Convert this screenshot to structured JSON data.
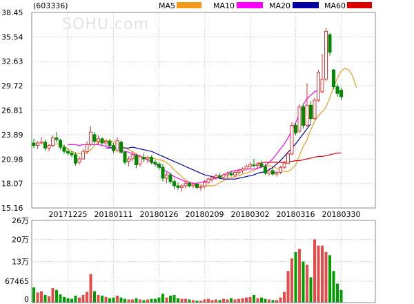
{
  "header": {
    "code": "(603336)",
    "watermark": "SOHU.com"
  },
  "legend": [
    {
      "name": "MA5",
      "color": "#f29a1b"
    },
    {
      "name": "MA10",
      "color": "#ff00ff"
    },
    {
      "name": "MA20",
      "color": "#0000a0"
    },
    {
      "name": "MA60",
      "color": "#dd0000"
    }
  ],
  "colors": {
    "up": "#e63232",
    "down": "#008a00",
    "volume_up": "#e84a4a",
    "volume_down": "#00a000"
  },
  "chart_data": [
    {
      "type": "candlestick",
      "ylim": [
        15.16,
        38.45
      ],
      "y_ticks": [
        "38.45",
        "35.54",
        "32.63",
        "29.72",
        "26.81",
        "23.89",
        "20.98",
        "18.07",
        "15.16"
      ],
      "x_tick_labels": [
        "20171225",
        "20180111",
        "20180126",
        "20180209",
        "20180302",
        "20180316",
        "20180330"
      ],
      "x_tick_index": [
        9,
        21,
        33,
        45,
        57,
        69,
        81
      ],
      "grid": true,
      "ohlc": [
        [
          22.9,
          23.4,
          22.3,
          22.6
        ],
        [
          22.6,
          23.1,
          22.2,
          22.9
        ],
        [
          22.9,
          23.6,
          22.7,
          23.0
        ],
        [
          23.0,
          23.3,
          22.0,
          22.3
        ],
        [
          22.3,
          22.8,
          21.9,
          22.6
        ],
        [
          22.6,
          23.8,
          22.4,
          23.5
        ],
        [
          23.5,
          24.2,
          23.0,
          23.3
        ],
        [
          23.2,
          23.4,
          22.1,
          22.4
        ],
        [
          22.4,
          22.7,
          21.6,
          21.9
        ],
        [
          21.9,
          22.3,
          21.4,
          21.7
        ],
        [
          21.7,
          22.0,
          21.2,
          21.5
        ],
        [
          21.5,
          21.8,
          20.2,
          20.5
        ],
        [
          20.6,
          21.3,
          20.3,
          21.0
        ],
        [
          21.0,
          22.2,
          20.9,
          21.9
        ],
        [
          21.9,
          23.1,
          21.6,
          22.7
        ],
        [
          22.7,
          24.9,
          22.5,
          24.2
        ],
        [
          23.9,
          24.2,
          22.8,
          23.1
        ],
        [
          23.1,
          23.8,
          22.7,
          23.4
        ],
        [
          23.4,
          23.6,
          22.6,
          22.9
        ],
        [
          22.9,
          23.3,
          22.5,
          23.1
        ],
        [
          23.1,
          23.4,
          22.4,
          22.6
        ],
        [
          22.6,
          22.9,
          21.7,
          22.0
        ],
        [
          22.0,
          23.6,
          21.8,
          23.2
        ],
        [
          23.0,
          23.2,
          21.6,
          21.8
        ],
        [
          21.8,
          22.0,
          20.3,
          20.6
        ],
        [
          20.7,
          21.3,
          20.1,
          21.0
        ],
        [
          21.0,
          21.9,
          20.7,
          21.5
        ],
        [
          21.4,
          21.6,
          19.9,
          20.3
        ],
        [
          20.4,
          21.5,
          20.1,
          21.3
        ],
        [
          21.2,
          21.7,
          20.6,
          21.0
        ],
        [
          21.0,
          21.4,
          20.5,
          21.2
        ],
        [
          21.2,
          21.4,
          20.4,
          20.6
        ],
        [
          20.6,
          20.9,
          20.1,
          20.4
        ],
        [
          20.4,
          20.6,
          19.7,
          20.0
        ],
        [
          20.0,
          20.4,
          18.3,
          18.7
        ],
        [
          18.7,
          19.4,
          18.1,
          19.1
        ],
        [
          19.1,
          19.4,
          18.0,
          18.3
        ],
        [
          18.3,
          18.6,
          17.4,
          17.8
        ],
        [
          17.8,
          18.2,
          17.3,
          17.6
        ],
        [
          17.6,
          18.0,
          17.1,
          17.8
        ],
        [
          17.8,
          18.4,
          17.5,
          18.1
        ],
        [
          18.1,
          18.3,
          17.6,
          17.8
        ],
        [
          17.8,
          18.2,
          17.5,
          18.0
        ],
        [
          18.0,
          18.2,
          17.4,
          17.6
        ],
        [
          17.6,
          17.9,
          17.2,
          17.7
        ],
        [
          17.7,
          18.5,
          17.5,
          18.2
        ],
        [
          18.2,
          18.8,
          18.0,
          18.6
        ],
        [
          18.6,
          19.0,
          18.3,
          18.8
        ],
        [
          18.8,
          19.2,
          18.5,
          19.0
        ],
        [
          19.0,
          19.3,
          18.6,
          18.8
        ],
        [
          18.8,
          19.3,
          18.6,
          19.1
        ],
        [
          19.1,
          19.5,
          18.8,
          19.3
        ],
        [
          19.3,
          19.6,
          18.9,
          19.1
        ],
        [
          19.1,
          19.6,
          18.8,
          19.4
        ],
        [
          19.4,
          19.8,
          19.1,
          19.6
        ],
        [
          19.6,
          20.0,
          19.3,
          19.8
        ],
        [
          19.8,
          20.4,
          19.6,
          20.1
        ],
        [
          20.1,
          20.6,
          19.8,
          20.3
        ],
        [
          20.3,
          21.0,
          20.0,
          20.2
        ],
        [
          20.2,
          20.6,
          19.8,
          20.4
        ],
        [
          20.4,
          20.8,
          20.0,
          20.1
        ],
        [
          20.1,
          20.4,
          19.1,
          19.3
        ],
        [
          19.3,
          19.9,
          19.0,
          19.6
        ],
        [
          19.6,
          19.9,
          19.0,
          19.2
        ],
        [
          19.2,
          19.6,
          18.9,
          19.4
        ],
        [
          19.4,
          20.2,
          19.2,
          20.0
        ],
        [
          20.0,
          20.7,
          19.8,
          20.5
        ],
        [
          20.5,
          21.9,
          20.3,
          21.6
        ],
        [
          21.6,
          25.4,
          21.4,
          25.0
        ],
        [
          25.0,
          25.4,
          23.8,
          24.1
        ],
        [
          24.3,
          27.5,
          24.1,
          27.2
        ],
        [
          27.2,
          27.6,
          24.6,
          25.0
        ],
        [
          25.0,
          30.0,
          24.8,
          27.4
        ],
        [
          27.4,
          27.9,
          25.3,
          25.8
        ],
        [
          25.8,
          28.3,
          25.6,
          28.0
        ],
        [
          28.0,
          31.6,
          27.8,
          31.3
        ],
        [
          29.0,
          33.5,
          28.8,
          30.5
        ],
        [
          30.5,
          36.6,
          30.3,
          36.2
        ],
        [
          35.8,
          36.0,
          33.3,
          33.7
        ],
        [
          31.6,
          31.7,
          29.3,
          29.6
        ],
        [
          29.6,
          30.0,
          28.4,
          28.8
        ],
        [
          29.2,
          29.5,
          28.0,
          28.4
        ]
      ],
      "ma_start_index": [
        4,
        9,
        19,
        59
      ],
      "ma5": [
        22.6,
        22.7,
        22.8,
        22.8,
        22.5,
        22.2,
        21.9,
        21.7,
        21.6,
        21.6,
        21.7,
        22.1,
        22.6,
        23.0,
        23.1,
        23.2,
        23.2,
        23.0,
        22.8,
        22.6,
        22.3,
        22.1,
        21.9,
        21.6,
        21.3,
        21.2,
        21.1,
        21.1,
        21.0,
        20.9,
        20.8,
        20.6,
        20.2,
        19.7,
        19.3,
        18.9,
        18.5,
        18.2,
        18.0,
        17.9,
        17.9,
        17.8,
        17.8,
        17.8,
        17.9,
        18.2,
        18.4,
        18.7,
        18.8,
        18.9,
        19.0,
        19.2,
        19.3,
        19.5,
        19.6,
        19.9,
        20.1,
        20.2,
        20.2,
        20.1,
        19.9,
        19.6,
        19.5,
        19.5,
        19.8,
        20.3,
        21.4,
        22.5,
        23.3,
        24.5,
        25.5,
        26.2,
        26.6,
        27.2,
        28.3,
        29.6,
        30.6,
        31.5,
        31.8,
        31.6,
        30.9,
        29.5
      ],
      "ma10": [
        22.7,
        22.7,
        22.7,
        22.6,
        22.7,
        22.7,
        22.7,
        22.7,
        22.7,
        22.6,
        22.5,
        22.4,
        22.3,
        22.1,
        22.0,
        21.9,
        21.8,
        21.6,
        21.5,
        21.3,
        21.1,
        20.9,
        20.6,
        20.4,
        20.1,
        19.8,
        19.5,
        19.2,
        18.9,
        18.7,
        18.5,
        18.3,
        18.2,
        18.1,
        18.1,
        18.2,
        18.3,
        18.4,
        18.6,
        18.7,
        18.9,
        19.1,
        19.3,
        19.5,
        19.6,
        19.7,
        19.8,
        19.8,
        19.8,
        19.8,
        19.9,
        20.0,
        20.2,
        20.6,
        21.0,
        21.6,
        22.2,
        22.8,
        23.5,
        24.4,
        25.3,
        26.4,
        27.5,
        28.2,
        28.6,
        29.0,
        29.2
      ],
      "ma20": [
        22.3,
        22.3,
        22.3,
        22.3,
        22.3,
        22.3,
        22.3,
        22.4,
        22.3,
        22.2,
        22.1,
        22.0,
        21.9,
        21.7,
        21.5,
        21.3,
        21.1,
        20.9,
        20.7,
        20.5,
        20.3,
        20.1,
        19.9,
        19.7,
        19.5,
        19.3,
        19.1,
        19.0,
        18.9,
        18.8,
        18.7,
        18.6,
        18.6,
        18.6,
        18.6,
        18.7,
        18.8,
        18.9,
        19.0,
        19.1,
        19.3,
        19.4,
        19.5,
        19.7,
        20.0,
        20.4,
        20.8,
        21.3,
        21.8,
        22.3,
        22.8,
        23.4,
        24.0,
        24.6,
        25.2
      ],
      "ma60": [
        20.5,
        20.5,
        20.6,
        20.6,
        20.6,
        20.6,
        20.6,
        20.6,
        20.7,
        20.7,
        20.8,
        20.8,
        20.9,
        21.0,
        21.1,
        21.2,
        21.3,
        21.3,
        21.4,
        21.5,
        21.6,
        21.7,
        21.7
      ]
    },
    {
      "type": "bar",
      "y_tick_labels": [
        "26万",
        "20万",
        "13万",
        "67465",
        "0"
      ],
      "y_tick_values": [
        260000,
        200000,
        130000,
        67465,
        0
      ],
      "ylim": [
        0,
        260000
      ],
      "volume": [
        48000,
        32000,
        36000,
        24000,
        20000,
        46000,
        40000,
        26000,
        18000,
        14000,
        12000,
        22000,
        16000,
        24000,
        34000,
        90000,
        36000,
        24000,
        22000,
        18000,
        14000,
        16000,
        22000,
        16000,
        12000,
        10000,
        10000,
        14000,
        10000,
        8000,
        10000,
        12000,
        12000,
        16000,
        28000,
        16000,
        22000,
        24000,
        14000,
        12000,
        12000,
        10000,
        8000,
        6000,
        6000,
        10000,
        12000,
        8000,
        10000,
        8000,
        12000,
        10000,
        14000,
        10000,
        12000,
        14000,
        16000,
        18000,
        24000,
        14000,
        16000,
        12000,
        10000,
        8000,
        8000,
        16000,
        34000,
        100000,
        140000,
        160000,
        170000,
        130000,
        120000,
        80000,
        200000,
        180000,
        180000,
        160000,
        150000,
        100000,
        60000,
        40000
      ]
    }
  ]
}
